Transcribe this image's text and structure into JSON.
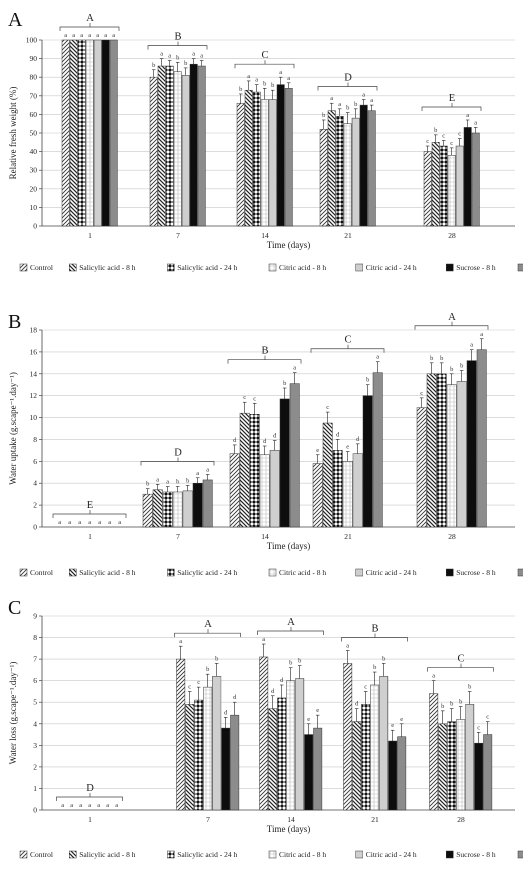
{
  "panel_labels": [
    "A",
    "B",
    "C"
  ],
  "legend": {
    "labels": [
      "Control",
      "Salicylic acid - 8 h",
      "Salicylic acid - 24 h",
      "Citric acid - 8 h",
      "Citric acid - 24 h",
      "Sucrose - 8 h",
      "Sucrose - 24 h"
    ]
  },
  "chart_data": [
    {
      "type": "bar",
      "panel": "A",
      "xlabel": "Time (days)",
      "ylabel": "Relative fresh weight (%)",
      "ylim": [
        0,
        100
      ],
      "yticks": [
        0,
        10,
        20,
        30,
        40,
        50,
        60,
        70,
        80,
        90,
        100
      ],
      "categories": [
        "1",
        "7",
        "14",
        "21",
        "28"
      ],
      "series": [
        {
          "name": "Control",
          "values": [
            100,
            80,
            66,
            52,
            40
          ],
          "errors": [
            0,
            4,
            5,
            5,
            3
          ]
        },
        {
          "name": "Salicylic acid - 8 h",
          "values": [
            100,
            86,
            73,
            62,
            45
          ],
          "errors": [
            0,
            4,
            5,
            4,
            4
          ]
        },
        {
          "name": "Salicylic acid - 24 h",
          "values": [
            100,
            86,
            72,
            59,
            43
          ],
          "errors": [
            0,
            3,
            4,
            4,
            3
          ]
        },
        {
          "name": "Citric acid - 8 h",
          "values": [
            100,
            83,
            68,
            55,
            38
          ],
          "errors": [
            0,
            5,
            6,
            6,
            4
          ]
        },
        {
          "name": "Citric acid - 24 h",
          "values": [
            100,
            81,
            68,
            58,
            43
          ],
          "errors": [
            0,
            4,
            5,
            5,
            4
          ]
        },
        {
          "name": "Sucrose - 8 h",
          "values": [
            100,
            87,
            76,
            65,
            53
          ],
          "errors": [
            0,
            3,
            4,
            3,
            4
          ]
        },
        {
          "name": "Sucrose - 24 h",
          "values": [
            100,
            86,
            74,
            62,
            50
          ],
          "errors": [
            0,
            3,
            3,
            3,
            3
          ]
        }
      ],
      "letters": [
        [
          "a",
          "a",
          "a",
          "a",
          "a",
          "a",
          "a"
        ],
        [
          "b",
          "a",
          "a",
          "b",
          "b",
          "a",
          "a"
        ],
        [
          "b",
          "a",
          "a",
          "b",
          "b",
          "a",
          "a"
        ],
        [
          "b",
          "a",
          "a",
          "b",
          "b",
          "a",
          "a"
        ],
        [
          "c",
          "b",
          "c",
          "c",
          "c",
          "a",
          "a"
        ]
      ],
      "group_letters": [
        "A",
        "B",
        "C",
        "D",
        "E"
      ]
    },
    {
      "type": "bar",
      "panel": "B",
      "xlabel": "Time (days)",
      "ylabel": "Water uptake (g.scape⁻¹.day⁻¹)",
      "ylim": [
        0,
        18
      ],
      "yticks": [
        0,
        2,
        4,
        6,
        8,
        10,
        12,
        14,
        16,
        18
      ],
      "categories": [
        "1",
        "7",
        "14",
        "21",
        "28"
      ],
      "series": [
        {
          "name": "Control",
          "values": [
            0,
            3.0,
            6.7,
            5.8,
            10.9
          ],
          "errors": [
            0,
            0.5,
            0.8,
            0.8,
            0.9
          ]
        },
        {
          "name": "Salicylic acid - 8 h",
          "values": [
            0,
            3.4,
            10.4,
            9.5,
            14.0
          ],
          "errors": [
            0,
            0.5,
            1.0,
            1.0,
            1.0
          ]
        },
        {
          "name": "Salicylic acid - 24 h",
          "values": [
            0,
            3.2,
            10.3,
            7.0,
            14.0
          ],
          "errors": [
            0,
            0.5,
            1.0,
            1.0,
            1.0
          ]
        },
        {
          "name": "Citric acid - 8 h",
          "values": [
            0,
            3.2,
            6.6,
            6.0,
            13.0
          ],
          "errors": [
            0,
            0.5,
            0.8,
            0.9,
            1.0
          ]
        },
        {
          "name": "Citric acid - 24 h",
          "values": [
            0,
            3.3,
            7.0,
            6.7,
            13.3
          ],
          "errors": [
            0,
            0.5,
            0.9,
            0.9,
            1.0
          ]
        },
        {
          "name": "Sucrose - 8 h",
          "values": [
            0,
            4.0,
            11.7,
            12.0,
            15.2
          ],
          "errors": [
            0,
            0.5,
            1.0,
            1.0,
            1.0
          ]
        },
        {
          "name": "Sucrose - 24 h",
          "values": [
            0,
            4.3,
            13.1,
            14.1,
            16.2
          ],
          "errors": [
            0,
            0.5,
            1.0,
            1.0,
            1.0
          ]
        }
      ],
      "letters": [
        [
          "a",
          "a",
          "a",
          "a",
          "a",
          "a",
          "a"
        ],
        [
          "b",
          "a",
          "a",
          "b",
          "b",
          "a",
          "a"
        ],
        [
          "d",
          "c",
          "c",
          "d",
          "d",
          "b",
          "a"
        ],
        [
          "e",
          "c",
          "d",
          "e",
          "d",
          "b",
          "a"
        ],
        [
          "c",
          "b",
          "b",
          "b",
          "b",
          "a",
          "a"
        ]
      ],
      "group_letters": [
        "E",
        "D",
        "B",
        "C",
        "A"
      ]
    },
    {
      "type": "bar",
      "panel": "C",
      "xlabel": "Time (days)",
      "ylabel": "Water loss (g.scape⁻¹.day⁻¹)",
      "ylim": [
        0,
        9
      ],
      "yticks": [
        0,
        1,
        2,
        3,
        4,
        5,
        6,
        7,
        8,
        9
      ],
      "categories": [
        "1",
        "7",
        "14",
        "21",
        "28"
      ],
      "series": [
        {
          "name": "Control",
          "values": [
            0,
            7.0,
            7.1,
            6.8,
            5.4
          ],
          "errors": [
            0,
            0.6,
            0.6,
            0.6,
            0.6
          ]
        },
        {
          "name": "Salicylic acid - 8 h",
          "values": [
            0,
            4.9,
            4.7,
            4.1,
            4.0
          ],
          "errors": [
            0,
            0.6,
            0.6,
            0.6,
            0.6
          ]
        },
        {
          "name": "Salicylic acid - 24 h",
          "values": [
            0,
            5.1,
            5.2,
            4.9,
            4.1
          ],
          "errors": [
            0,
            0.6,
            0.6,
            0.6,
            0.6
          ]
        },
        {
          "name": "Citric acid - 8 h",
          "values": [
            0,
            5.7,
            6.0,
            5.8,
            4.2
          ],
          "errors": [
            0,
            0.6,
            0.6,
            0.6,
            0.6
          ]
        },
        {
          "name": "Citric acid - 24 h",
          "values": [
            0,
            6.2,
            6.1,
            6.2,
            4.9
          ],
          "errors": [
            0,
            0.6,
            0.6,
            0.6,
            0.6
          ]
        },
        {
          "name": "Sucrose - 8 h",
          "values": [
            0,
            3.8,
            3.5,
            3.2,
            3.1
          ],
          "errors": [
            0,
            0.5,
            0.5,
            0.5,
            0.5
          ]
        },
        {
          "name": "Sucrose - 24 h",
          "values": [
            0,
            4.4,
            3.8,
            3.4,
            3.5
          ],
          "errors": [
            0,
            0.6,
            0.6,
            0.6,
            0.6
          ]
        }
      ],
      "letters": [
        [
          "a",
          "a",
          "a",
          "a",
          "a",
          "a",
          "a"
        ],
        [
          "a",
          "c",
          "c",
          "b",
          "b",
          "d",
          "d"
        ],
        [
          "a",
          "d",
          "d",
          "b",
          "b",
          "e",
          "e"
        ],
        [
          "a",
          "d",
          "c",
          "b",
          "b",
          "e",
          "e"
        ],
        [
          "a",
          "b",
          "b",
          "b",
          "b",
          "c",
          "c"
        ]
      ],
      "group_letters": [
        "D",
        "A",
        "A",
        "B",
        "C"
      ]
    }
  ]
}
